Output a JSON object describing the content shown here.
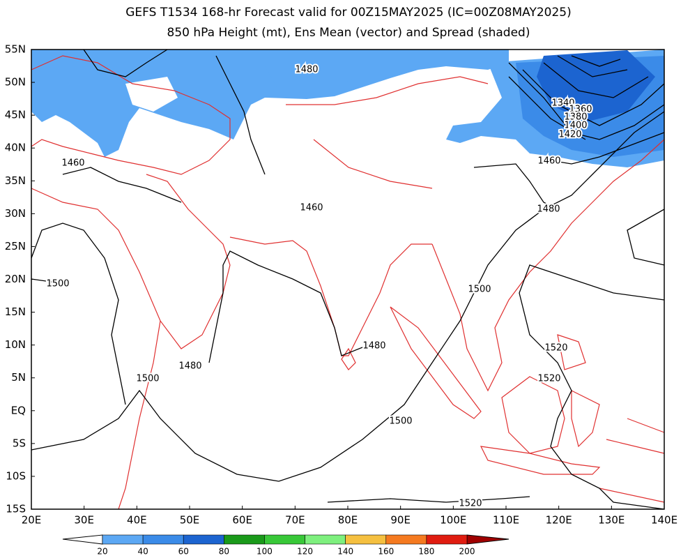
{
  "title": [
    "GEFS T1534 168-hr Forecast valid for 00Z15MAY2025 (IC=00Z08MAY2025)",
    "850 hPa Height (mt), Ens Mean (vector) and Spread (shaded)"
  ],
  "lat_labels": [
    "55N",
    "50N",
    "45N",
    "40N",
    "35N",
    "30N",
    "25N",
    "20N",
    "15N",
    "10N",
    "5N",
    "EQ",
    "5S",
    "10S",
    "15S"
  ],
  "lon_labels": [
    "20E",
    "30E",
    "40E",
    "50E",
    "60E",
    "70E",
    "80E",
    "90E",
    "100E",
    "110E",
    "120E",
    "130E",
    "140E"
  ],
  "contour_labels": [
    1480,
    1340,
    1360,
    1380,
    1400,
    1420,
    1460,
    1460,
    1460,
    1480,
    1500,
    1500,
    1480,
    1520,
    1480,
    1500,
    1520,
    1500,
    1520
  ],
  "colorbar_labels": [
    20,
    40,
    60,
    80,
    100,
    120,
    140,
    160,
    180,
    200
  ]
}
